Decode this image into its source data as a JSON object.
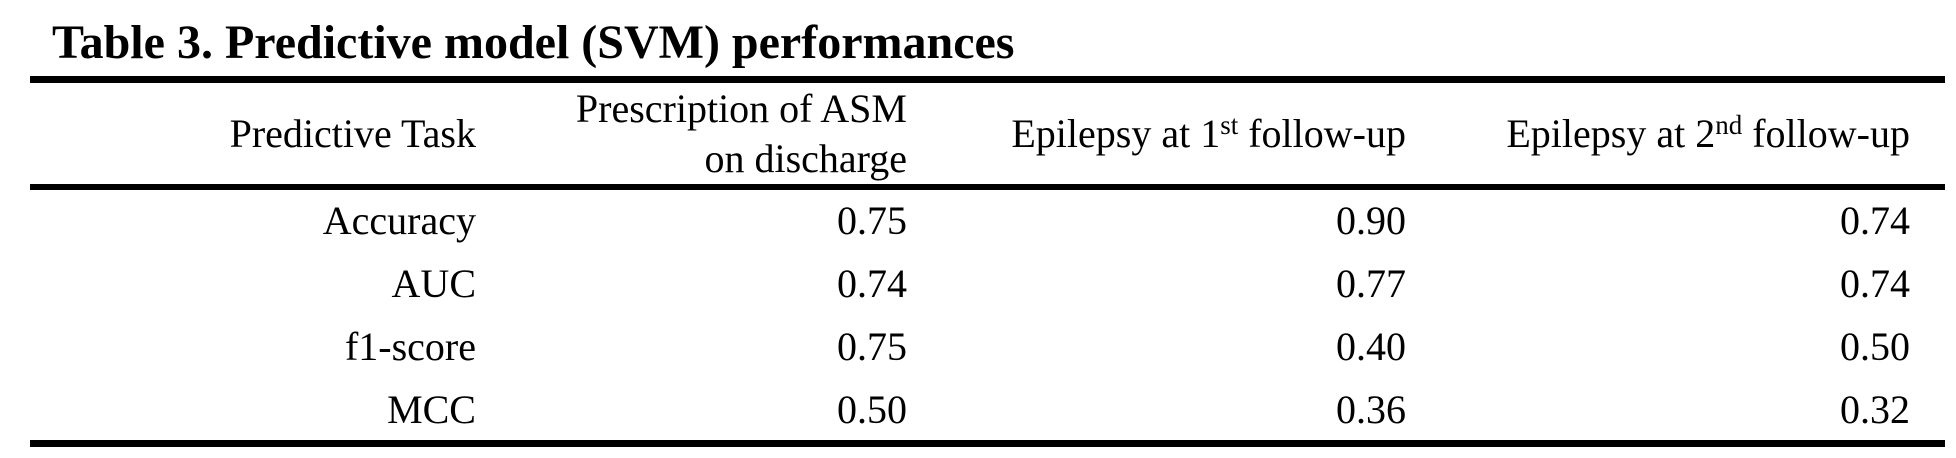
{
  "table": {
    "title": "Table 3. Predictive model (SVM) performances",
    "headers": {
      "task": "Predictive Task",
      "asm_line1": "Prescription of ASM",
      "asm_line2": "on discharge",
      "fu1_pre": "Epilepsy at 1",
      "fu1_sup": "st",
      "fu1_post": " follow-up",
      "fu2_pre": "Epilepsy at 2",
      "fu2_sup": "nd",
      "fu2_post": " follow-up"
    },
    "rows": [
      {
        "metric": "Accuracy",
        "asm": "0.75",
        "fu1": "0.90",
        "fu2": "0.74"
      },
      {
        "metric": "AUC",
        "asm": "0.74",
        "fu1": "0.77",
        "fu2": "0.74"
      },
      {
        "metric": "f1-score",
        "asm": "0.75",
        "fu1": "0.40",
        "fu2": "0.50"
      },
      {
        "metric": "MCC",
        "asm": "0.50",
        "fu1": "0.36",
        "fu2": "0.32"
      }
    ]
  }
}
